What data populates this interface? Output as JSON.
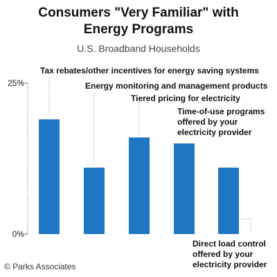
{
  "header": {
    "title_line1": "Consumers \"Very Familiar\" with",
    "title_line2": "Energy Programs",
    "subtitle": "U.S. Broadband Households"
  },
  "footer": {
    "source": "© Parks Associates"
  },
  "colors": {
    "bar": "#1f77c4",
    "axis": "#555555",
    "leader": "#888888",
    "text": "#111111"
  },
  "chart_data": {
    "type": "bar",
    "title": "Consumers \"Very Familiar\" with Energy Programs",
    "subtitle": "U.S. Broadband Households",
    "ylim": [
      0,
      25
    ],
    "yticks": [
      "25%",
      "0%"
    ],
    "categories": [
      "Tax rebates/other incentives for energy saving systems",
      "Energy monitoring and management products",
      "Tiered pricing for electricity",
      "Time-of-use programs offered by your electricity provider",
      "Direct load control offered by your electricity provider"
    ],
    "category_label_lines": [
      [
        "Tax rebates/other incentives for energy saving systems"
      ],
      [
        "Energy monitoring and management products"
      ],
      [
        "Tiered pricing for electricity"
      ],
      [
        "Time-of-use programs",
        "offered by your",
        "electricity provider"
      ],
      [
        "Direct load control",
        "offered by your",
        "electricity provider"
      ]
    ],
    "values": [
      19,
      11,
      16,
      15,
      11
    ],
    "grid": false,
    "legend": "none"
  }
}
